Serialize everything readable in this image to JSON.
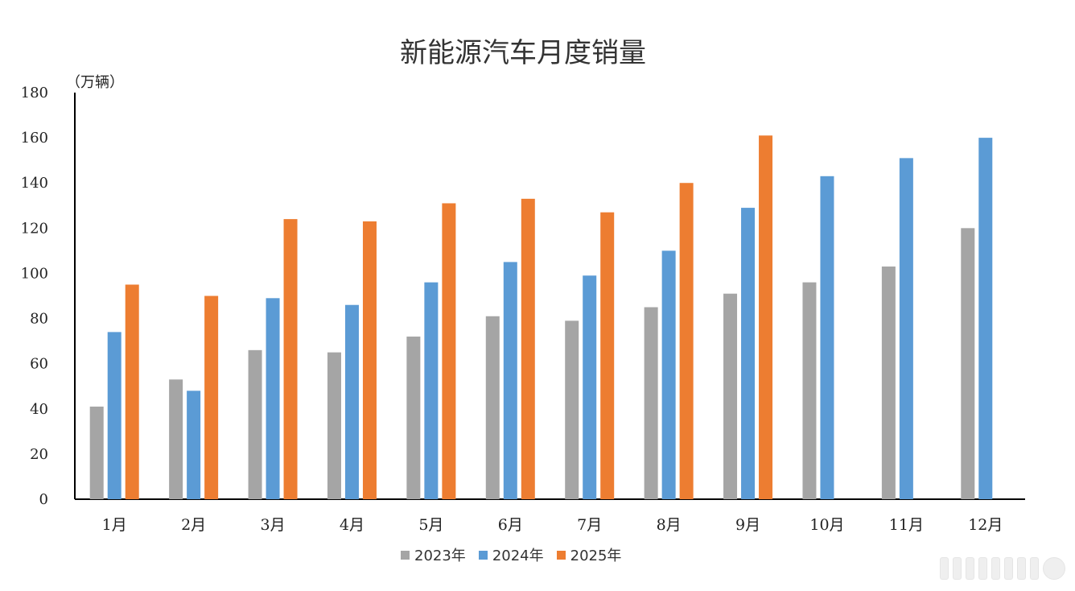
{
  "chart_data": {
    "type": "bar",
    "title": "新能源汽车月度销量",
    "unit_label": "（万辆）",
    "categories": [
      "1月",
      "2月",
      "3月",
      "4月",
      "5月",
      "6月",
      "7月",
      "8月",
      "9月",
      "10月",
      "11月",
      "12月"
    ],
    "series": [
      {
        "name": "2023年",
        "color": "#a5a5a5",
        "values": [
          41,
          53,
          66,
          65,
          72,
          81,
          79,
          85,
          91,
          96,
          103,
          120
        ]
      },
      {
        "name": "2024年",
        "color": "#5b9bd5",
        "values": [
          74,
          48,
          89,
          86,
          96,
          105,
          99,
          110,
          129,
          143,
          151,
          160
        ]
      },
      {
        "name": "2025年",
        "color": "#ed7d31",
        "values": [
          95,
          90,
          124,
          123,
          131,
          133,
          127,
          140,
          161,
          null,
          null,
          null
        ]
      }
    ],
    "ylim": [
      0,
      180
    ],
    "yticks": [
      0,
      20,
      40,
      60,
      80,
      100,
      120,
      140,
      160,
      180
    ],
    "grid": false,
    "legend_position": "bottom"
  }
}
